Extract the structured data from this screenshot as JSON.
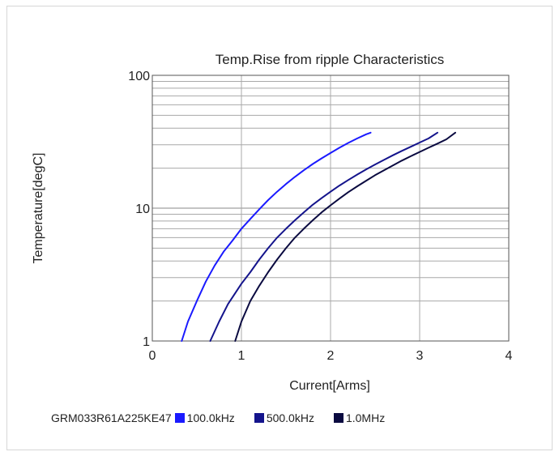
{
  "chart_data": {
    "type": "line",
    "title": "Temp.Rise from ripple Characteristics",
    "xlabel": "Current[Arms]",
    "ylabel": "Temperature[degC]",
    "xlim": [
      0,
      4
    ],
    "ylim": [
      1,
      100
    ],
    "y_scale": "log",
    "x_ticks": [
      "0",
      "1",
      "2",
      "3",
      "4"
    ],
    "y_ticks": [
      {
        "value": 1,
        "label": "1"
      },
      {
        "value": 10,
        "label": "10"
      },
      {
        "value": 100,
        "label": "100"
      }
    ],
    "grid": true,
    "legend_position": "bottom",
    "part_number": "GRM033R61A225KE47",
    "series": [
      {
        "name": "100.0kHz",
        "color": "#1a1aff",
        "points": [
          [
            0.33,
            1.0
          ],
          [
            0.4,
            1.4
          ],
          [
            0.5,
            2.0
          ],
          [
            0.6,
            2.8
          ],
          [
            0.7,
            3.7
          ],
          [
            0.8,
            4.7
          ],
          [
            0.9,
            5.7
          ],
          [
            1.0,
            7.0
          ],
          [
            1.1,
            8.3
          ],
          [
            1.2,
            9.8
          ],
          [
            1.3,
            11.5
          ],
          [
            1.4,
            13.3
          ],
          [
            1.5,
            15.2
          ],
          [
            1.6,
            17.2
          ],
          [
            1.7,
            19.3
          ],
          [
            1.8,
            21.5
          ],
          [
            1.9,
            23.7
          ],
          [
            2.0,
            26.0
          ],
          [
            2.1,
            28.5
          ],
          [
            2.2,
            31.0
          ],
          [
            2.3,
            33.5
          ],
          [
            2.4,
            36.0
          ],
          [
            2.45,
            37.0
          ]
        ]
      },
      {
        "name": "500.0kHz",
        "color": "#14148c",
        "points": [
          [
            0.65,
            1.0
          ],
          [
            0.75,
            1.4
          ],
          [
            0.85,
            1.9
          ],
          [
            1.0,
            2.7
          ],
          [
            1.1,
            3.3
          ],
          [
            1.2,
            4.1
          ],
          [
            1.3,
            5.0
          ],
          [
            1.4,
            6.0
          ],
          [
            1.5,
            7.0
          ],
          [
            1.6,
            8.1
          ],
          [
            1.7,
            9.3
          ],
          [
            1.8,
            10.6
          ],
          [
            1.9,
            11.9
          ],
          [
            2.0,
            13.3
          ],
          [
            2.1,
            14.8
          ],
          [
            2.2,
            16.3
          ],
          [
            2.3,
            17.9
          ],
          [
            2.4,
            19.6
          ],
          [
            2.5,
            21.3
          ],
          [
            2.6,
            23.1
          ],
          [
            2.7,
            25.0
          ],
          [
            2.8,
            27.0
          ],
          [
            2.9,
            29.0
          ],
          [
            3.0,
            31.2
          ],
          [
            3.1,
            33.5
          ],
          [
            3.2,
            37.0
          ]
        ]
      },
      {
        "name": "1.0MHz",
        "color": "#0a0a40",
        "points": [
          [
            0.93,
            1.0
          ],
          [
            1.0,
            1.4
          ],
          [
            1.1,
            2.0
          ],
          [
            1.2,
            2.6
          ],
          [
            1.3,
            3.3
          ],
          [
            1.4,
            4.1
          ],
          [
            1.5,
            5.0
          ],
          [
            1.6,
            6.0
          ],
          [
            1.7,
            7.0
          ],
          [
            1.8,
            8.1
          ],
          [
            1.9,
            9.3
          ],
          [
            2.0,
            10.5
          ],
          [
            2.1,
            11.8
          ],
          [
            2.2,
            13.2
          ],
          [
            2.3,
            14.6
          ],
          [
            2.4,
            16.1
          ],
          [
            2.5,
            17.7
          ],
          [
            2.6,
            19.3
          ],
          [
            2.7,
            21.0
          ],
          [
            2.8,
            22.8
          ],
          [
            2.9,
            24.6
          ],
          [
            3.0,
            26.5
          ],
          [
            3.1,
            28.5
          ],
          [
            3.2,
            30.6
          ],
          [
            3.3,
            33.0
          ],
          [
            3.4,
            37.0
          ]
        ]
      }
    ]
  }
}
